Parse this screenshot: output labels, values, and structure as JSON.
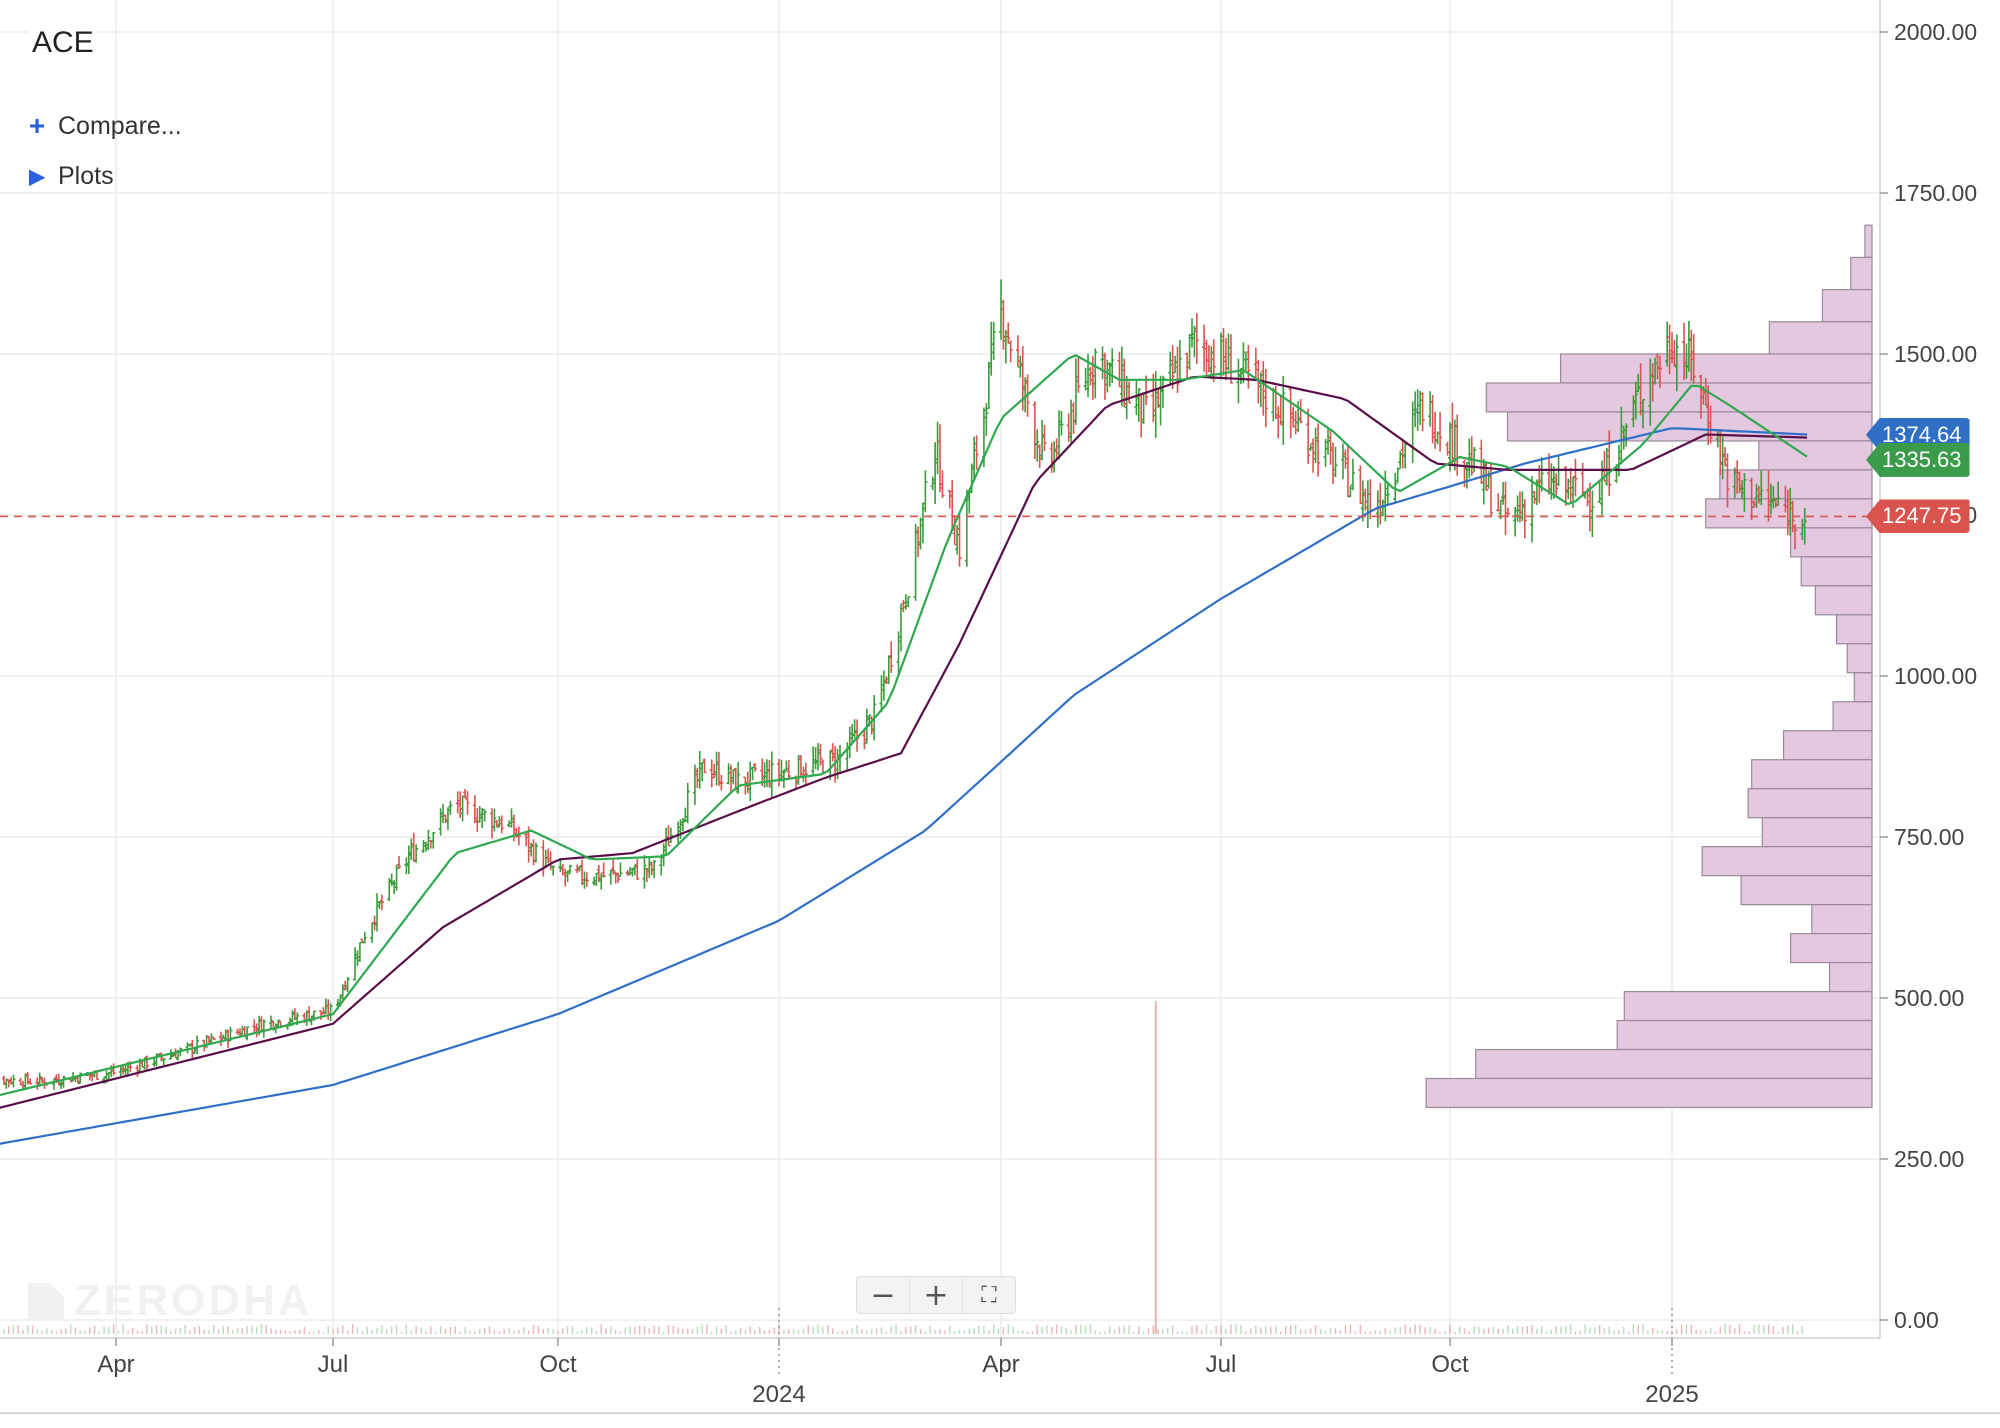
{
  "header": {
    "symbol": "ACE",
    "compare_label": "Compare...",
    "compare_icon": "plus-icon",
    "plots_label": "Plots",
    "plots_icon": "triangle-right-icon"
  },
  "watermark": {
    "text": "ZERODHA"
  },
  "zoom_controls": {
    "zoom_out_icon": "minus-icon",
    "zoom_in_icon": "plus-icon",
    "fullscreen_icon": "fullscreen-icon"
  },
  "price_tags": [
    {
      "label": "1374.64",
      "value": 1374.64,
      "color": "#2f6fc6"
    },
    {
      "label": "1335.63",
      "value": 1335.63,
      "color": "#3a9c4a"
    },
    {
      "label": "1247.75",
      "value": 1247.75,
      "color": "#d9534f"
    }
  ],
  "colors": {
    "up": "#3a9c3a",
    "down": "#d9534f",
    "ma_fast": "#2fa84f",
    "ma_mid": "#5a0f4a",
    "ma_slow": "#2f6fc6",
    "volume_profile": "#e3c8e0",
    "last_price_line": "#d9534f"
  },
  "chart_data": {
    "type": "candlestick",
    "symbol": "ACE",
    "ylim": [
      0,
      2000
    ],
    "y_ticks": [
      "2000.00",
      "1750.00",
      "1500.00",
      "1250.00",
      "1000.00",
      "750.00",
      "500.00",
      "250.00",
      "0.00"
    ],
    "y_tick_values": [
      2000,
      1750,
      1500,
      1250,
      1000,
      750,
      500,
      250,
      0
    ],
    "x_ticks": [
      {
        "label": "Apr",
        "date": "2023-04-01"
      },
      {
        "label": "Jul",
        "date": "2023-07-01"
      },
      {
        "label": "Oct",
        "date": "2023-10-01"
      },
      {
        "label": "2024",
        "date": "2024-01-01",
        "major": true
      },
      {
        "label": "Apr",
        "date": "2024-04-01"
      },
      {
        "label": "Jul",
        "date": "2024-07-01"
      },
      {
        "label": "Oct",
        "date": "2024-10-01"
      },
      {
        "label": "2025",
        "date": "2025-01-01",
        "major": true
      }
    ],
    "x_range": [
      "2023-02-01",
      "2025-05-15"
    ],
    "last_price": 1247.75,
    "price_path": [
      [
        "2023-02-01",
        375
      ],
      [
        "2023-03-01",
        370
      ],
      [
        "2023-04-01",
        385
      ],
      [
        "2023-05-01",
        420
      ],
      [
        "2023-06-01",
        460
      ],
      [
        "2023-07-01",
        480
      ],
      [
        "2023-07-15",
        610
      ],
      [
        "2023-08-01",
        720
      ],
      [
        "2023-08-20",
        800
      ],
      [
        "2023-09-10",
        770
      ],
      [
        "2023-10-01",
        690
      ],
      [
        "2023-10-20",
        690
      ],
      [
        "2023-11-10",
        700
      ],
      [
        "2023-12-01",
        860
      ],
      [
        "2023-12-15",
        835
      ],
      [
        "2024-01-01",
        850
      ],
      [
        "2024-01-25",
        870
      ],
      [
        "2024-02-10",
        940
      ],
      [
        "2024-02-25",
        1180
      ],
      [
        "2024-03-05",
        1350
      ],
      [
        "2024-03-15",
        1200
      ],
      [
        "2024-04-01",
        1570
      ],
      [
        "2024-04-20",
        1320
      ],
      [
        "2024-05-10",
        1500
      ],
      [
        "2024-06-01",
        1400
      ],
      [
        "2024-06-20",
        1520
      ],
      [
        "2024-07-10",
        1470
      ],
      [
        "2024-08-01",
        1390
      ],
      [
        "2024-09-01",
        1260
      ],
      [
        "2024-09-20",
        1420
      ],
      [
        "2024-10-10",
        1330
      ],
      [
        "2024-10-25",
        1240
      ],
      [
        "2024-11-10",
        1300
      ],
      [
        "2024-12-01",
        1280
      ],
      [
        "2024-12-20",
        1450
      ],
      [
        "2025-01-01",
        1520
      ],
      [
        "2025-01-10",
        1480
      ],
      [
        "2025-01-25",
        1300
      ],
      [
        "2025-02-10",
        1270
      ],
      [
        "2025-02-25",
        1247.75
      ]
    ],
    "ma_fast_path": [
      [
        "2023-02-01",
        340
      ],
      [
        "2023-07-01",
        475
      ],
      [
        "2023-08-20",
        725
      ],
      [
        "2023-09-20",
        760
      ],
      [
        "2023-10-15",
        715
      ],
      [
        "2023-11-15",
        720
      ],
      [
        "2023-12-15",
        830
      ],
      [
        "2024-01-20",
        848
      ],
      [
        "2024-02-15",
        960
      ],
      [
        "2024-03-10",
        1210
      ],
      [
        "2024-04-01",
        1400
      ],
      [
        "2024-05-01",
        1500
      ],
      [
        "2024-05-20",
        1460
      ],
      [
        "2024-06-15",
        1460
      ],
      [
        "2024-07-10",
        1475
      ],
      [
        "2024-08-15",
        1380
      ],
      [
        "2024-09-10",
        1285
      ],
      [
        "2024-10-05",
        1340
      ],
      [
        "2024-10-25",
        1325
      ],
      [
        "2024-11-20",
        1265
      ],
      [
        "2024-12-20",
        1360
      ],
      [
        "2025-01-10",
        1455
      ],
      [
        "2025-01-25",
        1420
      ],
      [
        "2025-02-28",
        1335.63
      ]
    ],
    "ma_mid_path": [
      [
        "2023-02-01",
        320
      ],
      [
        "2023-07-01",
        460
      ],
      [
        "2023-08-15",
        610
      ],
      [
        "2023-10-01",
        715
      ],
      [
        "2023-11-01",
        725
      ],
      [
        "2023-12-15",
        790
      ],
      [
        "2024-01-20",
        842
      ],
      [
        "2024-02-20",
        880
      ],
      [
        "2024-03-15",
        1050
      ],
      [
        "2024-04-15",
        1300
      ],
      [
        "2024-05-15",
        1420
      ],
      [
        "2024-06-20",
        1465
      ],
      [
        "2024-07-15",
        1460
      ],
      [
        "2024-08-20",
        1430
      ],
      [
        "2024-09-25",
        1330
      ],
      [
        "2024-10-25",
        1320
      ],
      [
        "2024-12-15",
        1320
      ],
      [
        "2025-01-15",
        1375
      ],
      [
        "2025-02-28",
        1370
      ]
    ],
    "ma_slow_path": [
      [
        "2023-02-01",
        267
      ],
      [
        "2023-07-01",
        365
      ],
      [
        "2023-10-01",
        475
      ],
      [
        "2024-01-01",
        620
      ],
      [
        "2024-03-01",
        760
      ],
      [
        "2024-05-01",
        970
      ],
      [
        "2024-07-01",
        1120
      ],
      [
        "2024-09-01",
        1260
      ],
      [
        "2024-11-01",
        1330
      ],
      [
        "2025-01-01",
        1385
      ],
      [
        "2025-02-28",
        1374.64
      ]
    ],
    "volume_profile": [
      {
        "low": 1650,
        "high": 1700,
        "volume": 2
      },
      {
        "low": 1600,
        "high": 1650,
        "volume": 6
      },
      {
        "low": 1550,
        "high": 1600,
        "volume": 14
      },
      {
        "low": 1500,
        "high": 1550,
        "volume": 29
      },
      {
        "low": 1455,
        "high": 1500,
        "volume": 88
      },
      {
        "low": 1410,
        "high": 1455,
        "volume": 109
      },
      {
        "low": 1365,
        "high": 1410,
        "volume": 103
      },
      {
        "low": 1320,
        "high": 1365,
        "volume": 32
      },
      {
        "low": 1275,
        "high": 1320,
        "volume": 43
      },
      {
        "low": 1230,
        "high": 1275,
        "volume": 47
      },
      {
        "low": 1185,
        "high": 1230,
        "volume": 23
      },
      {
        "low": 1140,
        "high": 1185,
        "volume": 20
      },
      {
        "low": 1095,
        "high": 1140,
        "volume": 16
      },
      {
        "low": 1050,
        "high": 1095,
        "volume": 10
      },
      {
        "low": 1005,
        "high": 1050,
        "volume": 7
      },
      {
        "low": 960,
        "high": 1005,
        "volume": 5
      },
      {
        "low": 915,
        "high": 960,
        "volume": 11
      },
      {
        "low": 870,
        "high": 915,
        "volume": 25
      },
      {
        "low": 825,
        "high": 870,
        "volume": 34
      },
      {
        "low": 780,
        "high": 825,
        "volume": 35
      },
      {
        "low": 735,
        "high": 780,
        "volume": 31
      },
      {
        "low": 690,
        "high": 735,
        "volume": 48
      },
      {
        "low": 645,
        "high": 690,
        "volume": 37
      },
      {
        "low": 600,
        "high": 645,
        "volume": 17
      },
      {
        "low": 555,
        "high": 600,
        "volume": 23
      },
      {
        "low": 510,
        "high": 555,
        "volume": 12
      },
      {
        "low": 465,
        "high": 510,
        "volume": 70
      },
      {
        "low": 420,
        "high": 465,
        "volume": 72
      },
      {
        "low": 375,
        "high": 420,
        "volume": 112
      },
      {
        "low": 330,
        "high": 375,
        "volume": 126
      }
    ]
  }
}
